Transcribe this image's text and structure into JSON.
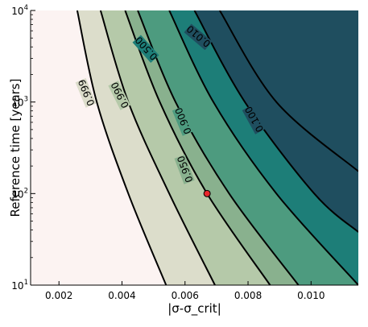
{
  "chart_data": {
    "type": "contour",
    "title": "",
    "xlabel": "|σ-σ_crit|",
    "ylabel": "Reference time [years]",
    "xlim": [
      0.0011,
      0.0115
    ],
    "ylim": [
      10,
      10000
    ],
    "y_scale": "log",
    "grid": false,
    "x_ticks": [
      "0.002",
      "0.004",
      "0.006",
      "0.008",
      "0.010"
    ],
    "y_ticks": [
      {
        "base": "10",
        "exp": "1",
        "value": 10
      },
      {
        "base": "10",
        "exp": "2",
        "value": 100
      },
      {
        "base": "10",
        "exp": "3",
        "value": 1000
      },
      {
        "base": "10",
        "exp": "4",
        "value": 10000
      }
    ],
    "levels": [
      {
        "value": 0.999,
        "label": "0.999",
        "fill": "#fcf3f2",
        "curve": [
          [
            0.00258,
            10000
          ],
          [
            0.0032,
            1000
          ],
          [
            0.0042,
            100
          ],
          [
            0.0054,
            10
          ]
        ]
      },
      {
        "value": 0.99,
        "label": "0.990",
        "fill": "#dcddcb",
        "curve": [
          [
            0.00332,
            10000
          ],
          [
            0.0042,
            1000
          ],
          [
            0.0055,
            100
          ],
          [
            0.00695,
            10
          ]
        ]
      },
      {
        "value": 0.95,
        "label": "0.950",
        "fill": "#b5c9a9",
        "curve": [
          [
            0.0041,
            10000
          ],
          [
            0.0052,
            1000
          ],
          [
            0.0067,
            100
          ],
          [
            0.0087,
            10
          ]
        ]
      },
      {
        "value": 0.9,
        "label": "0.900",
        "fill": "#89b18e",
        "curve": [
          [
            0.0045,
            10000
          ],
          [
            0.0057,
            1000
          ],
          [
            0.0074,
            100
          ],
          [
            0.0096,
            10
          ]
        ]
      },
      {
        "value": 0.5,
        "label": "0.500",
        "fill": "#4d9b7f",
        "curve": [
          [
            0.0055,
            10000
          ],
          [
            0.0069,
            1000
          ],
          [
            0.0089,
            100
          ],
          [
            0.0115,
            10
          ]
        ]
      },
      {
        "value": 0.1,
        "label": "0.100",
        "fill": "#1d7e78",
        "curve": [
          [
            0.0063,
            10000
          ],
          [
            0.0079,
            1000
          ],
          [
            0.0101,
            100
          ],
          [
            0.0115,
            38
          ]
        ]
      },
      {
        "value": 0.01,
        "label": "0.010",
        "fill": "#1f4e5f",
        "curve": [
          [
            0.0071,
            10000
          ],
          [
            0.0089,
            1000
          ],
          [
            0.0115,
            175
          ]
        ]
      }
    ],
    "marker": {
      "x": 0.0067,
      "y": 100,
      "color": "#e8262b"
    }
  }
}
